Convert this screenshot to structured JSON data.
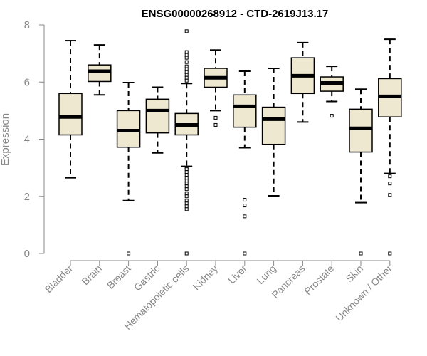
{
  "chart_data": {
    "type": "boxplot",
    "title": "ENSG00000268912 - CTD-2619J13.17",
    "xlabel": "",
    "ylabel": "Expression",
    "ylim": [
      0,
      8
    ],
    "yticks": [
      0,
      2,
      4,
      6,
      8
    ],
    "grid": false,
    "box_fill": "#efe8d0",
    "categories": [
      "Bladder",
      "Brain",
      "Breast",
      "Gastric",
      "Hematopoietic cells",
      "Kidney",
      "Liver",
      "Lung",
      "Pancreas",
      "Prostate",
      "Skin",
      "Unknown / Other"
    ],
    "boxes": [
      {
        "min": 2.65,
        "q1": 4.15,
        "median": 4.78,
        "q3": 5.6,
        "max": 7.45,
        "outliers": []
      },
      {
        "min": 5.55,
        "q1": 6.02,
        "median": 6.38,
        "q3": 6.6,
        "max": 7.3,
        "outliers": []
      },
      {
        "min": 1.85,
        "q1": 3.72,
        "median": 4.3,
        "q3": 5.0,
        "max": 5.98,
        "outliers": [
          0
        ]
      },
      {
        "min": 3.52,
        "q1": 4.22,
        "median": 5.0,
        "q3": 5.4,
        "max": 5.82,
        "outliers": []
      },
      {
        "min": 3.05,
        "q1": 4.15,
        "median": 4.5,
        "q3": 4.9,
        "max": 5.95,
        "outliers": [
          7.78,
          7.05,
          6.95,
          6.85,
          6.7,
          6.55,
          6.45,
          6.35,
          6.25,
          6.15,
          6.05,
          3.0,
          2.95,
          2.85,
          2.75,
          2.65,
          2.55,
          2.45,
          2.35,
          2.25,
          2.1,
          2.0,
          1.85,
          1.75,
          1.65,
          1.55,
          0
        ]
      },
      {
        "min": 5.0,
        "q1": 5.82,
        "median": 6.15,
        "q3": 6.48,
        "max": 7.12,
        "outliers": [
          4.75,
          4.5
        ]
      },
      {
        "min": 3.7,
        "q1": 4.42,
        "median": 5.15,
        "q3": 5.55,
        "max": 6.38,
        "outliers": [
          1.88,
          1.68,
          1.3,
          0
        ]
      },
      {
        "min": 2.02,
        "q1": 3.82,
        "median": 4.7,
        "q3": 5.12,
        "max": 6.48,
        "outliers": []
      },
      {
        "min": 4.6,
        "q1": 5.6,
        "median": 6.22,
        "q3": 6.85,
        "max": 7.38,
        "outliers": []
      },
      {
        "min": 5.32,
        "q1": 5.68,
        "median": 5.97,
        "q3": 6.18,
        "max": 6.55,
        "outliers": [
          4.82
        ]
      },
      {
        "min": 1.78,
        "q1": 3.55,
        "median": 4.38,
        "q3": 5.05,
        "max": 5.75,
        "outliers": [
          0
        ]
      },
      {
        "min": 2.8,
        "q1": 4.78,
        "median": 5.5,
        "q3": 6.12,
        "max": 7.5,
        "outliers": [
          2.7,
          2.45,
          2.05,
          0
        ]
      }
    ]
  }
}
